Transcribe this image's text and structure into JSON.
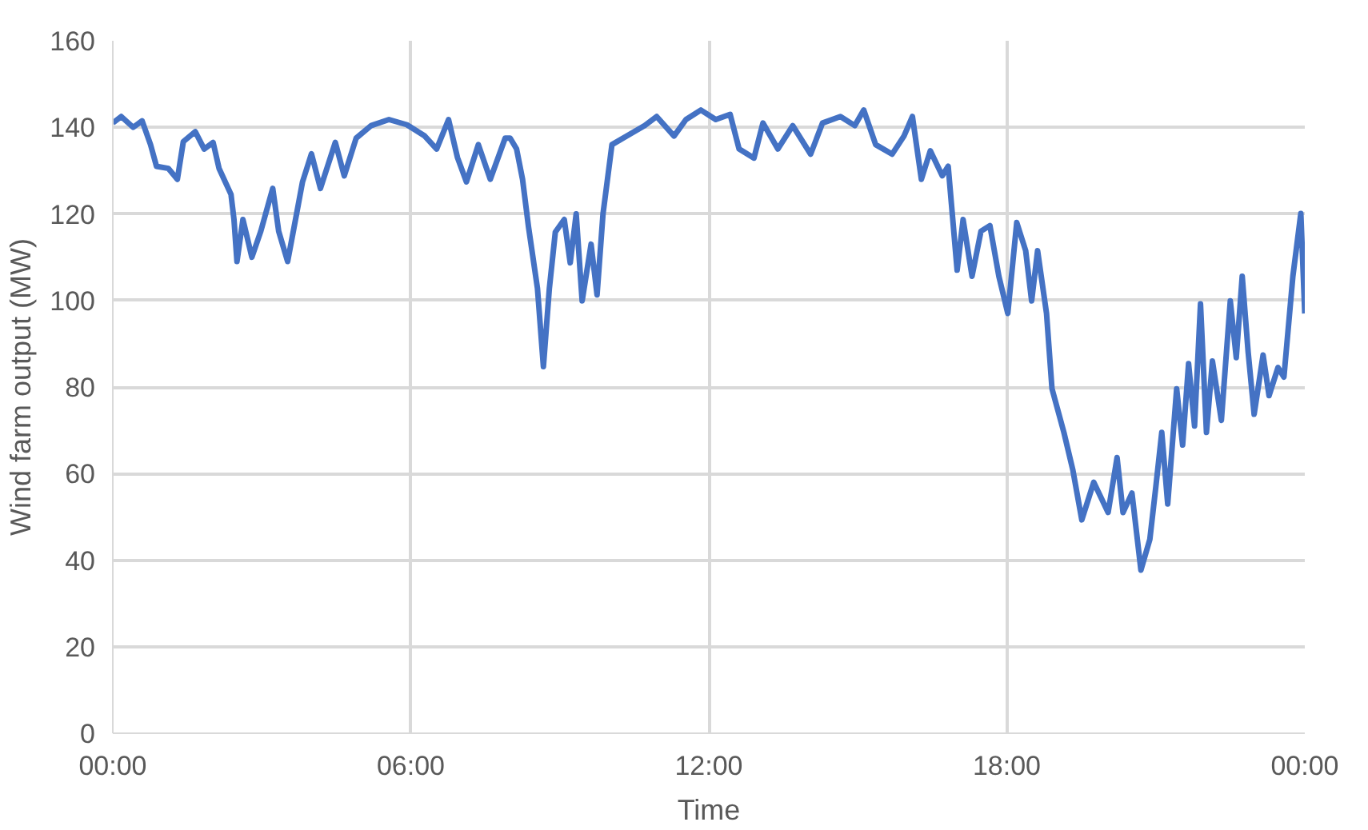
{
  "chart_data": {
    "type": "line",
    "xlabel": "Time",
    "ylabel": "Wind farm output (MW)",
    "x": [
      0,
      0.17,
      0.41,
      0.59,
      0.76,
      0.88,
      1.12,
      1.3,
      1.42,
      1.66,
      1.84,
      2.02,
      2.14,
      2.38,
      2.44,
      2.5,
      2.62,
      2.8,
      2.98,
      3.22,
      3.34,
      3.52,
      3.7,
      3.82,
      4.0,
      4.18,
      4.48,
      4.66,
      4.9,
      5.2,
      5.56,
      5.92,
      6.28,
      6.52,
      6.76,
      6.94,
      7.12,
      7.36,
      7.6,
      7.9,
      8.0,
      8.13,
      8.25,
      8.37,
      8.55,
      8.67,
      8.79,
      8.91,
      9.09,
      9.21,
      9.33,
      9.45,
      9.63,
      9.75,
      9.87,
      10.05,
      10.35,
      10.71,
      10.95,
      11.3,
      11.54,
      11.84,
      12.14,
      12.43,
      12.61,
      12.91,
      13.09,
      13.39,
      13.69,
      14.05,
      14.29,
      14.65,
      14.94,
      15.12,
      15.36,
      15.69,
      15.93,
      16.1,
      16.28,
      16.46,
      16.7,
      16.82,
      17.0,
      17.12,
      17.3,
      17.48,
      17.66,
      17.84,
      18.02,
      18.2,
      18.38,
      18.5,
      18.62,
      18.8,
      18.91,
      19.15,
      19.33,
      19.51,
      19.75,
      20.04,
      20.22,
      20.34,
      20.52,
      20.7,
      20.88,
      21.0,
      21.12,
      21.24,
      21.42,
      21.54,
      21.66,
      21.78,
      21.9,
      22.02,
      22.14,
      22.32,
      22.5,
      22.62,
      22.74,
      22.86,
      22.98,
      23.16,
      23.28,
      23.46,
      23.58,
      23.76,
      23.92,
      24.0
    ],
    "series": [
      {
        "color": "#4472c4",
        "values": [
          141,
          142.5,
          140,
          141.5,
          136,
          131,
          130.5,
          128,
          136.7,
          139,
          135,
          136.5,
          130.5,
          124.5,
          118.7,
          109,
          118.7,
          110,
          116,
          125.9,
          116,
          109,
          120,
          127.4,
          133.9,
          125.9,
          136.5,
          128.8,
          137.5,
          140.4,
          141.8,
          140.6,
          138,
          135,
          141.8,
          133,
          127.4,
          136,
          128,
          137.5,
          137.5,
          135,
          128,
          117,
          102.8,
          84.7,
          102.8,
          115.8,
          118.7,
          108.7,
          120,
          99.9,
          113,
          101.3,
          120,
          136,
          138,
          140.4,
          142.5,
          138,
          141.8,
          144,
          141.8,
          143,
          135,
          132.9,
          141,
          135,
          140.4,
          133.8,
          141,
          142.5,
          140.4,
          144,
          136,
          133.8,
          138,
          142.5,
          128,
          134.6,
          128.8,
          131,
          107,
          118.7,
          105.6,
          116,
          117.3,
          105.6,
          97,
          118,
          111.5,
          99.9,
          111.5,
          97,
          79.6,
          69.5,
          60.8,
          49.3,
          58,
          51,
          63.7,
          51,
          55.5,
          37.7,
          44.8,
          56.9,
          69.5,
          53,
          79.6,
          66.6,
          85.4,
          71,
          99.2,
          69.5,
          86,
          72.3,
          99.9,
          86.8,
          105.6,
          88,
          73.7,
          87.4,
          78,
          84.5,
          82.3,
          105.6,
          120.1,
          97
        ]
      }
    ],
    "xlim": [
      0,
      24
    ],
    "xticks": [
      {
        "value": 0,
        "label": "00:00"
      },
      {
        "value": 6,
        "label": "06:00"
      },
      {
        "value": 12,
        "label": "12:00"
      },
      {
        "value": 18,
        "label": "18:00"
      },
      {
        "value": 24,
        "label": "00:00"
      }
    ],
    "ylim": [
      0,
      160
    ],
    "yticks": [
      0,
      20,
      40,
      60,
      80,
      100,
      120,
      140,
      160
    ],
    "grid": true,
    "line_style": "solid",
    "marker": "none"
  }
}
